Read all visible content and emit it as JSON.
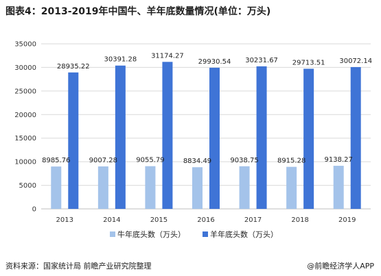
{
  "title": "图表4：2013-2019年中国牛、羊年底数量情况(单位：万头)",
  "source": "资料来源：国家统计局 前瞻产业研究院整理",
  "credit": "@前瞻经济学人APP",
  "colors": {
    "cattle": "#a4c3ea",
    "sheep": "#3f74d6",
    "grid": "#d9d9d9",
    "axis": "#bfbfbf"
  },
  "chart_data": {
    "type": "bar",
    "title": "图表4：2013-2019年中国牛、羊年底数量情况(单位：万头)",
    "xlabel": "",
    "ylabel": "",
    "categories": [
      "2013",
      "2014",
      "2015",
      "2016",
      "2017",
      "2018",
      "2019"
    ],
    "ylim": [
      0,
      35000
    ],
    "yticks": [
      0,
      5000,
      10000,
      15000,
      20000,
      25000,
      30000,
      35000
    ],
    "grid": true,
    "legend": "bottom",
    "series": [
      {
        "name": "牛年底头数（万头）",
        "color": "#a4c3ea",
        "values": [
          8985.76,
          9007.28,
          9055.79,
          8834.49,
          9038.75,
          8915.28,
          9138.27
        ]
      },
      {
        "name": "羊年底头数（万头）",
        "color": "#3f74d6",
        "values": [
          28935.22,
          30391.28,
          31174.27,
          29930.54,
          30231.67,
          29713.51,
          30072.14
        ]
      }
    ]
  }
}
